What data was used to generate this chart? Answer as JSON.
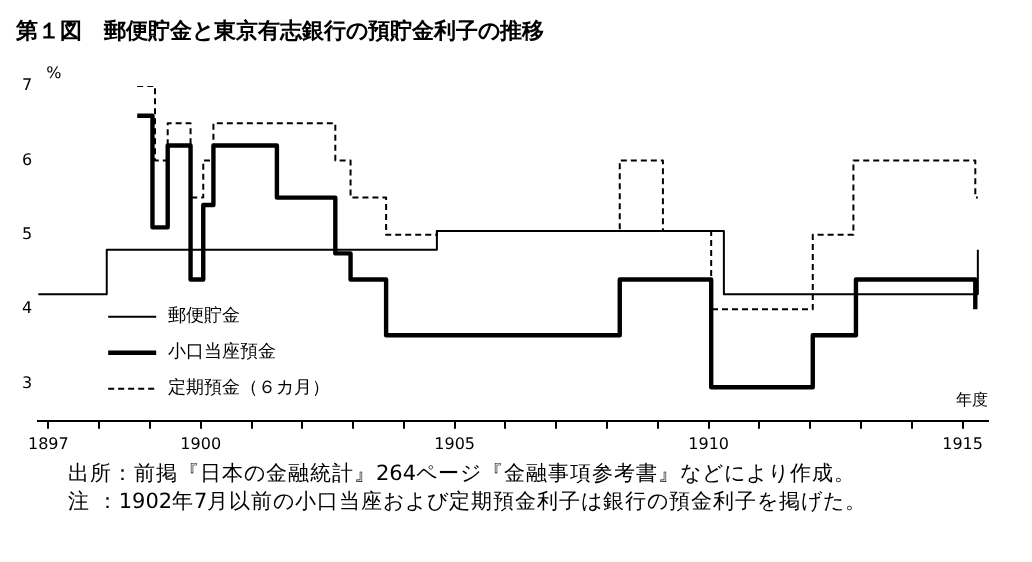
{
  "chart_data": {
    "type": "step",
    "title": "第１図　郵便貯金と東京有志銀行の預貯金利子の推移",
    "xlabel": "年度",
    "ylabel": "%",
    "series": [
      {
        "name": "郵便貯金",
        "color": "#000000",
        "line_style": "solid",
        "x": [
          1896.8,
          1898.15,
          1904.65,
          1910.3,
          1915.3
        ],
        "values": [
          4.2,
          4.8,
          5.05,
          4.2,
          4.8
        ]
      },
      {
        "name": "小口当座預金",
        "color": "#000000",
        "line_style": "solid",
        "x": [
          1898.75,
          1899.05,
          1899.35,
          1899.8,
          1900.05,
          1900.25,
          1901.5,
          1902.65,
          1902.95,
          1903.65,
          1908.25,
          1910.05,
          1912.05,
          1912.9,
          1915.25
        ],
        "values": [
          6.6,
          5.1,
          6.2,
          4.4,
          5.4,
          6.2,
          5.5,
          4.75,
          4.4,
          3.65,
          4.4,
          2.95,
          3.65,
          4.4,
          4.0
        ]
      },
      {
        "name": "定期預金（６カ月）",
        "color": "#000000",
        "line_style": "dashed",
        "x": [
          1898.75,
          1899.1,
          1899.35,
          1899.8,
          1900.05,
          1900.25,
          1902.65,
          1902.95,
          1903.65,
          1904.65,
          1908.25,
          1909.1,
          1910.05,
          1912.05,
          1912.85,
          1915.25,
          1915.3
        ],
        "values": [
          7.0,
          6.0,
          6.5,
          5.5,
          6.0,
          6.5,
          6.0,
          5.5,
          5.0,
          5.05,
          6.0,
          5.05,
          4.0,
          5.0,
          6.0,
          5.5,
          5.5
        ]
      }
    ],
    "xlim": [
      1896.8,
      1915.5
    ],
    "xticks": [
      1897,
      {
        "value": 1898,
        "label": null
      },
      {
        "value": 1899,
        "label": null
      },
      1900,
      {
        "value": 1901,
        "label": null
      },
      {
        "value": 1902,
        "label": null
      },
      {
        "value": 1903,
        "label": null
      },
      {
        "value": 1904,
        "label": null
      },
      1905,
      {
        "value": 1906,
        "label": null
      },
      {
        "value": 1907,
        "label": null
      },
      {
        "value": 1908,
        "label": null
      },
      {
        "value": 1909,
        "label": null
      },
      1910,
      {
        "value": 1911,
        "label": null
      },
      {
        "value": 1912,
        "label": null
      },
      {
        "value": 1913,
        "label": null
      },
      {
        "value": 1914,
        "label": null
      },
      1915
    ],
    "ylim": [
      2.5,
      7
    ],
    "yticks": [
      3,
      4,
      5,
      6,
      7
    ],
    "grid": false,
    "legend": "bottom left",
    "marker": "none",
    "annotations": [
      "出所：前掲『日本の金融統計』264ページ『金融事項参考書』などにより作成。",
      "注 ：1902年7月以前の小口当座および定期預金利子は銀行の預金利子を掲げた。"
    ]
  }
}
